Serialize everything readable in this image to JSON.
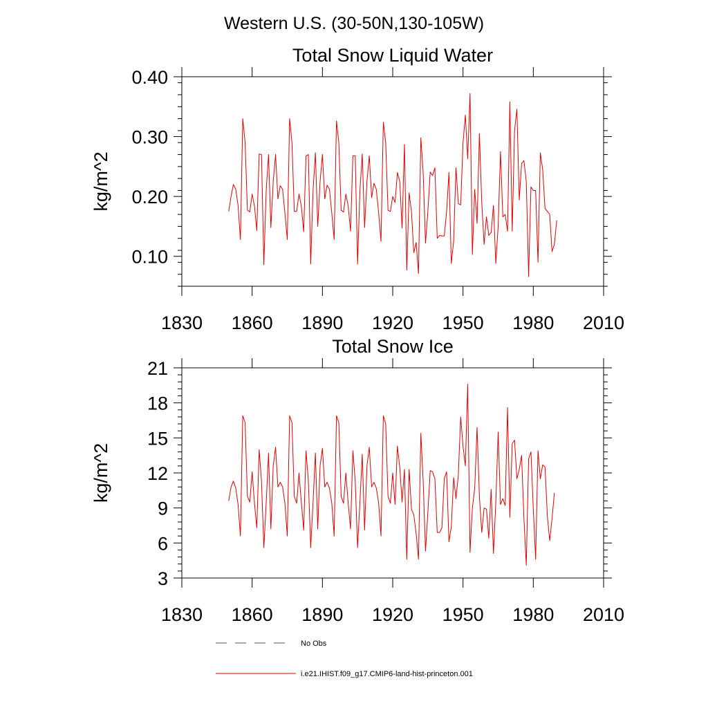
{
  "figure_title": "Western U.S. (30-50N,130-105W)",
  "legend": {
    "entries": [
      {
        "label": "No Obs",
        "color": "#4a4a7a",
        "style": "dashed"
      },
      {
        "label": "i.e21.IHIST.f09_g17.CMIP6-land-hist-princeton.001",
        "color": "#e00000",
        "style": "solid"
      }
    ]
  },
  "chart_data": [
    {
      "type": "line",
      "title": "Total Snow Liquid Water",
      "xlabel": "",
      "ylabel": "kg/m^2",
      "xlim": [
        1830,
        2010
      ],
      "ylim": [
        0.05,
        0.4
      ],
      "xticks": [
        1830,
        1860,
        1890,
        1920,
        1950,
        1980,
        2010
      ],
      "xtick_labels": [
        "1830",
        "1860",
        "1890",
        "1920",
        "1950",
        "1980",
        "2010"
      ],
      "yticks": [
        0.1,
        0.2,
        0.3,
        0.4
      ],
      "ytick_labels": [
        "0.10",
        "0.20",
        "0.30",
        "0.40"
      ],
      "series": [
        {
          "color": "#e00000",
          "x_start": 1850,
          "values": [
            0.175,
            0.2,
            0.22,
            0.212,
            0.185,
            0.128,
            0.33,
            0.29,
            0.177,
            0.174,
            0.204,
            0.184,
            0.143,
            0.271,
            0.27,
            0.086,
            0.21,
            0.27,
            0.148,
            0.225,
            0.27,
            0.196,
            0.218,
            0.212,
            0.172,
            0.128,
            0.33,
            0.29,
            0.175,
            0.175,
            0.204,
            0.184,
            0.141,
            0.268,
            0.27,
            0.087,
            0.21,
            0.273,
            0.15,
            0.225,
            0.27,
            0.196,
            0.219,
            0.212,
            0.172,
            0.128,
            0.326,
            0.29,
            0.177,
            0.174,
            0.204,
            0.184,
            0.142,
            0.268,
            0.268,
            0.087,
            0.21,
            0.271,
            0.148,
            0.225,
            0.268,
            0.198,
            0.222,
            0.212,
            0.172,
            0.125,
            0.324,
            0.29,
            0.177,
            0.175,
            0.2,
            0.19,
            0.24,
            0.225,
            0.147,
            0.287,
            0.077,
            0.206,
            0.175,
            0.106,
            0.123,
            0.071,
            0.298,
            0.24,
            0.122,
            0.175,
            0.241,
            0.235,
            0.248,
            0.13,
            0.135,
            0.134,
            0.134,
            0.175,
            0.24,
            0.088,
            0.125,
            0.248,
            0.188,
            0.186,
            0.289,
            0.336,
            0.263,
            0.372,
            0.103,
            0.212,
            0.155,
            0.305,
            0.19,
            0.12,
            0.166,
            0.135,
            0.14,
            0.185,
            0.088,
            0.15,
            0.275,
            0.166,
            0.17,
            0.142,
            0.358,
            0.142,
            0.31,
            0.346,
            0.194,
            0.255,
            0.26,
            0.225,
            0.066,
            0.216,
            0.21,
            0.21,
            0.09,
            0.273,
            0.245,
            0.18,
            0.175,
            0.17,
            0.108,
            0.12,
            0.16
          ]
        }
      ]
    },
    {
      "type": "line",
      "title": "Total Snow Ice",
      "xlabel": "",
      "ylabel": "kg/m^2",
      "xlim": [
        1830,
        2010
      ],
      "ylim": [
        3,
        21
      ],
      "xticks": [
        1830,
        1860,
        1890,
        1920,
        1950,
        1980,
        2010
      ],
      "xtick_labels": [
        "1830",
        "1860",
        "1890",
        "1920",
        "1950",
        "1980",
        "2010"
      ],
      "yticks": [
        3,
        6,
        9,
        12,
        15,
        18,
        21
      ],
      "ytick_labels": [
        "3",
        "6",
        "9",
        "12",
        "15",
        "18",
        "21"
      ],
      "series": [
        {
          "color": "#e00000",
          "x_start": 1850,
          "values": [
            9.6,
            10.8,
            11.3,
            10.7,
            9.3,
            6.6,
            16.9,
            16.3,
            10.0,
            9.5,
            12.1,
            9.4,
            7.3,
            14.0,
            11.3,
            5.6,
            9.4,
            13.7,
            7.2,
            12.6,
            14.2,
            10.8,
            11.2,
            10.8,
            9.4,
            6.6,
            16.9,
            16.3,
            10.0,
            9.4,
            12.0,
            9.5,
            7.1,
            13.9,
            11.3,
            5.6,
            9.5,
            13.7,
            7.2,
            12.6,
            14.1,
            10.8,
            11.2,
            10.7,
            9.4,
            6.6,
            16.9,
            16.3,
            10.0,
            9.4,
            12.0,
            9.4,
            7.2,
            13.9,
            11.3,
            5.6,
            9.5,
            13.6,
            7.1,
            12.6,
            14.2,
            10.8,
            11.2,
            10.7,
            9.4,
            6.6,
            16.9,
            16.2,
            10.0,
            9.4,
            12.0,
            9.3,
            14.3,
            12.5,
            9.5,
            12.3,
            4.6,
            12.3,
            8.9,
            8.4,
            6.8,
            4.6,
            15.4,
            11.3,
            5.3,
            8.6,
            12.2,
            12.1,
            11.5,
            6.9,
            6.9,
            7.3,
            11.5,
            12.1,
            6.1,
            7.4,
            11.6,
            9.8,
            11.8,
            16.8,
            14.3,
            12.6,
            19.6,
            5.2,
            9.0,
            10.7,
            15.9,
            10.0,
            6.9,
            9.0,
            8.9,
            6.4,
            10.6,
            5.1,
            9.5,
            15.5,
            9.3,
            9.8,
            9.2,
            17.6,
            8.2,
            14.5,
            14.8,
            11.5,
            12.3,
            13.5,
            8.1,
            4.1,
            13.2,
            13.8,
            8.9,
            4.6,
            13.9,
            11.5,
            12.7,
            12.5,
            8.3,
            6.2,
            8.1,
            10.3
          ]
        }
      ]
    }
  ]
}
